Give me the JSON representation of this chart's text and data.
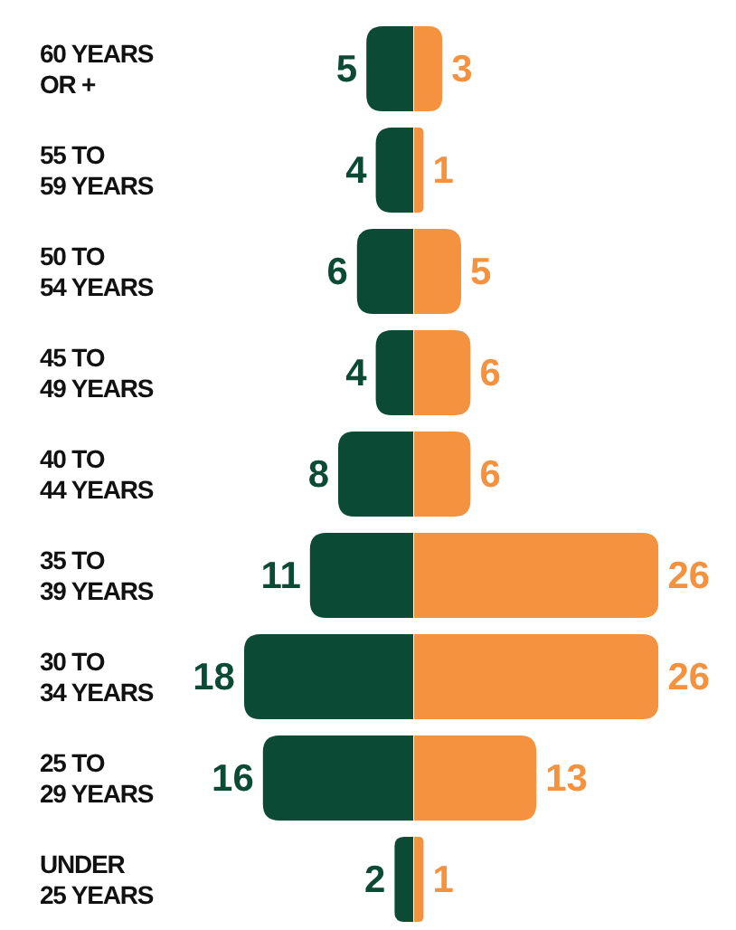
{
  "chart_data": [
    {
      "type": "bar",
      "orientation": "horizontal",
      "categories": [
        "60 YEARS\nOR +",
        "55 TO\n59 YEARS",
        "50 TO\n54 YEARS",
        "45 TO\n49 YEARS",
        "40 TO\n44 YEARS",
        "35 TO\n39 YEARS",
        "30 TO\n34 YEARS",
        "25 TO\n29 YEARS",
        "UNDER\n25 YEARS"
      ],
      "series": [
        {
          "color": "#0b4a34",
          "values": [
            5,
            4,
            6,
            4,
            8,
            11,
            18,
            16,
            2
          ]
        }
      ],
      "xlim": [
        18,
        0
      ],
      "data_labels": true,
      "tick_labels": "y"
    },
    {
      "type": "bar",
      "orientation": "horizontal",
      "categories": [
        null,
        null,
        null,
        null,
        null,
        null,
        null,
        null,
        null
      ],
      "series": [
        {
          "color": "#f4923f",
          "values": [
            3,
            1,
            5,
            6,
            6,
            26,
            26,
            13,
            1
          ]
        }
      ],
      "xlim": [
        0,
        26
      ],
      "data_labels": true,
      "tick_labels": false
    }
  ]
}
